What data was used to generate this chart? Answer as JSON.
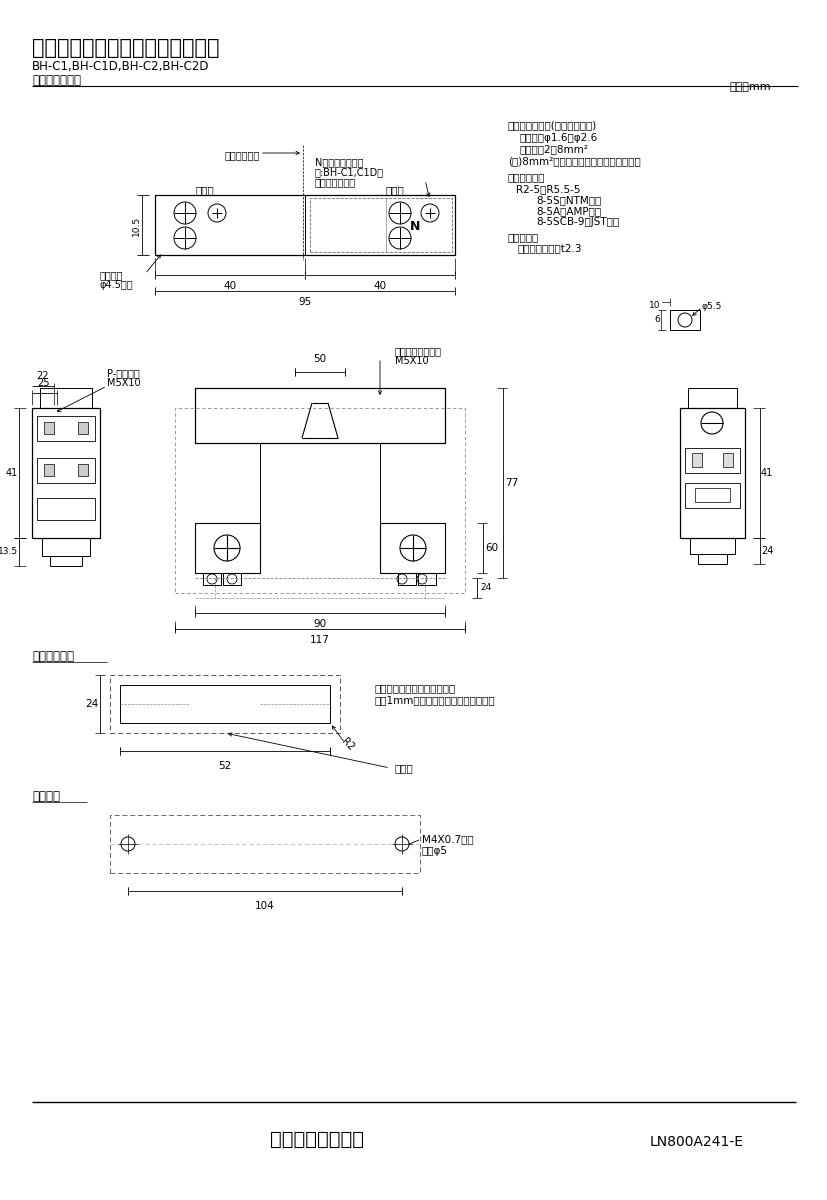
{
  "bg_color": "#ffffff",
  "line_color": "#000000",
  "title_main": "三菱分電盤用ノーヒューズ遮断器",
  "title_sub1": "BH-C1,BH-C1D,BH-C2,BH-C2D",
  "title_sub2": "標準外形寸法図",
  "unit_text": "単位：mm",
  "footer_company": "三菱電機株式会社",
  "footer_code": "LN800A241-E",
  "spec_title1": "適合電線サイズ(負荷端子のみ)",
  "spec_line1": "単線　：φ1.6～φ2.6",
  "spec_line2": "より線：2～8mm²",
  "spec_line3": "(注)8mm²電線は圧着端子をご使用下さい",
  "spec_title2": "適合圧着端子",
  "spec_crimp1": "R2-5～R5.5-5",
  "spec_crimp2": "8-5S（NTM社）",
  "spec_crimp3": "8-5A（AMP社）",
  "spec_crimp4": "8-5SCB-9（JST社）",
  "spec_title3": "導帯加工図",
  "spec_bus1": "最大導帯板厚　t2.3",
  "label_source": "電源側",
  "label_load": "負荷側",
  "label_center": "遮断器の中心",
  "label_N": "N（中性線記号）",
  "label_note": "注:BH-C1,C1D形",
  "label_note2": "にのみ付きます",
  "label_clip": "取付つめ",
  "label_clip2": "φ4.5長穴",
  "label_pan_screw": "P-なべねじ",
  "label_pan_screw2": "M5X10",
  "label_self_screw": "セルフアップねじ",
  "label_self_screw2": "M5X10",
  "label_panel": "表板穴明寸法",
  "label_hole": "穴明寸法",
  "label_hole_note1": "穴明寸法は遮断器窓枠に対し",
  "label_hole_note2": "片側1mmの隙間をもたせた寸法です。",
  "label_breaker": "遮断器",
  "label_screw": "M4X0.7ねじ",
  "label_screw2": "又はφ5",
  "dim_95": "95",
  "dim_40a": "40",
  "dim_40b": "40",
  "dim_10_5": "10.5",
  "dim_25": "25",
  "dim_22": "22",
  "dim_41a": "41",
  "dim_13_5": "13.5",
  "dim_24a": "24",
  "dim_50": "50",
  "dim_60": "60",
  "dim_77": "77",
  "dim_90": "90",
  "dim_117": "117",
  "dim_24b": "24",
  "dim_41b": "41",
  "dim_10": "10",
  "dim_6": "6",
  "dim_phi5_5": "φ5.5",
  "dim_panel_24": "24",
  "dim_panel_52": "52",
  "dim_panel_r2": "R2",
  "dim_hole_104": "104"
}
